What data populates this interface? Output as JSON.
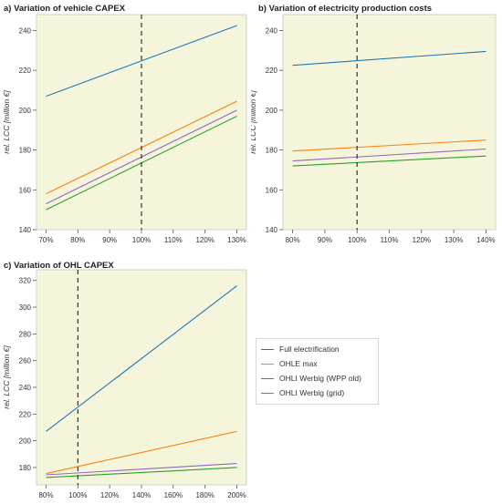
{
  "colors": {
    "plot_bg": "#f5f5dc",
    "Full electrification": "#1f77b4",
    "OHLE max": "#ff7f0e",
    "OHLI Werbig (WPP old)": "#2ca02c",
    "OHLI Werbig (grid)": "#9467bd"
  },
  "legend": {
    "items": [
      "Full electrification",
      "OHLE max",
      "OHLI Werbig (WPP old)",
      "OHLI Werbig (grid)"
    ]
  },
  "chart_data": [
    {
      "type": "line",
      "title": "a) Variation of vehicle CAPEX",
      "ylabel": "rel. LCC [million €]",
      "xlabel": "",
      "x": [
        70,
        130
      ],
      "xticks": [
        "70%",
        "80%",
        "90%",
        "100%",
        "110%",
        "120%",
        "130%"
      ],
      "xtick_values": [
        70,
        80,
        90,
        100,
        110,
        120,
        130
      ],
      "xlim": [
        67,
        133
      ],
      "yticks": [
        "140",
        "160",
        "180",
        "200",
        "220",
        "240"
      ],
      "ytick_values": [
        140,
        160,
        180,
        200,
        220,
        240
      ],
      "ylim": [
        140,
        248
      ],
      "reference_line_x": 100,
      "grid": false,
      "series": [
        {
          "name": "Full electrification",
          "values": [
            207,
            242.5
          ]
        },
        {
          "name": "OHLE max",
          "values": [
            158,
            204.5
          ]
        },
        {
          "name": "OHLI Werbig (WPP old)",
          "values": [
            150,
            197
          ]
        },
        {
          "name": "OHLI Werbig (grid)",
          "values": [
            153,
            200
          ]
        }
      ]
    },
    {
      "type": "line",
      "title": "b) Variation of electricity production costs",
      "ylabel": "rel. LCC [million €]",
      "xlabel": "",
      "x": [
        80,
        140
      ],
      "xticks": [
        "80%",
        "90%",
        "100%",
        "110%",
        "120%",
        "130%",
        "140%"
      ],
      "xtick_values": [
        80,
        90,
        100,
        110,
        120,
        130,
        140
      ],
      "xlim": [
        77,
        143
      ],
      "yticks": [
        "140",
        "160",
        "180",
        "200",
        "220",
        "240"
      ],
      "ytick_values": [
        140,
        160,
        180,
        200,
        220,
        240
      ],
      "ylim": [
        140,
        248
      ],
      "reference_line_x": 100,
      "grid": false,
      "series": [
        {
          "name": "Full electrification",
          "values": [
            222.5,
            229.5
          ]
        },
        {
          "name": "OHLE max",
          "values": [
            179.5,
            185
          ]
        },
        {
          "name": "OHLI Werbig (WPP old)",
          "values": [
            172,
            177
          ]
        },
        {
          "name": "OHLI Werbig (grid)",
          "values": [
            174.5,
            180.5
          ]
        }
      ]
    },
    {
      "type": "line",
      "title": "c) Variation of OHL CAPEX",
      "ylabel": "rel. LCC [million €]",
      "xlabel": "",
      "x": [
        80,
        200
      ],
      "xticks": [
        "80%",
        "100%",
        "120%",
        "140%",
        "160%",
        "180%",
        "200%"
      ],
      "xtick_values": [
        80,
        100,
        120,
        140,
        160,
        180,
        200
      ],
      "xlim": [
        74,
        206
      ],
      "yticks": [
        "180",
        "200",
        "220",
        "240",
        "260",
        "280",
        "300",
        "320"
      ],
      "ytick_values": [
        180,
        200,
        220,
        240,
        260,
        280,
        300,
        320
      ],
      "ylim": [
        167,
        328
      ],
      "reference_line_x": 100,
      "grid": false,
      "series": [
        {
          "name": "Full electrification",
          "values": [
            207,
            316
          ]
        },
        {
          "name": "OHLE max",
          "values": [
            175.5,
            207
          ]
        },
        {
          "name": "OHLI Werbig (WPP old)",
          "values": [
            172.5,
            180
          ]
        },
        {
          "name": "OHLI Werbig (grid)",
          "values": [
            174.5,
            183
          ]
        }
      ]
    }
  ]
}
